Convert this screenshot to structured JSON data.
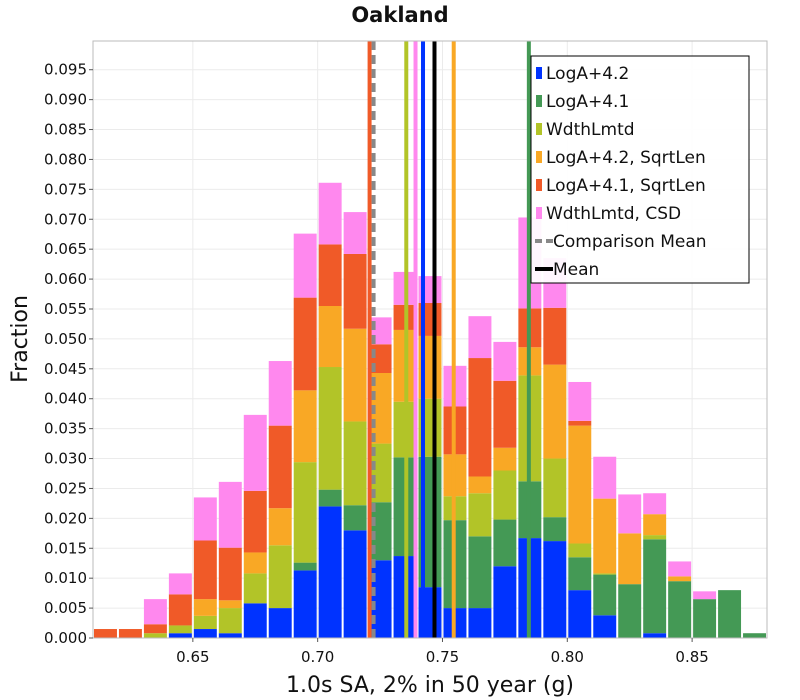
{
  "chart_data": {
    "type": "bar",
    "stacked": true,
    "title": "Oakland",
    "xlabel": "1.0s SA, 2% in 50 year (g)",
    "ylabel": "Fraction",
    "xlim": [
      0.61,
      0.88
    ],
    "ylim": [
      0.0,
      0.0998
    ],
    "bin_width": 0.01,
    "x_ticks": [
      0.65,
      0.7,
      0.75,
      0.8,
      0.85
    ],
    "x_tick_labels": [
      "0.65",
      "0.70",
      "0.75",
      "0.80",
      "0.85"
    ],
    "y_ticks": [
      0.0,
      0.005,
      0.01,
      0.015,
      0.02,
      0.025,
      0.03,
      0.035,
      0.04,
      0.045,
      0.05,
      0.055,
      0.06,
      0.065,
      0.07,
      0.075,
      0.08,
      0.085,
      0.09,
      0.095
    ],
    "y_tick_labels": [
      "0.000",
      "0.005",
      "0.010",
      "0.015",
      "0.020",
      "0.025",
      "0.030",
      "0.035",
      "0.040",
      "0.045",
      "0.050",
      "0.055",
      "0.060",
      "0.065",
      "0.070",
      "0.075",
      "0.080",
      "0.085",
      "0.090",
      "0.095"
    ],
    "grid": true,
    "bin_centers": [
      0.615,
      0.625,
      0.635,
      0.645,
      0.655,
      0.665,
      0.675,
      0.685,
      0.695,
      0.705,
      0.715,
      0.725,
      0.735,
      0.745,
      0.755,
      0.765,
      0.775,
      0.785,
      0.795,
      0.805,
      0.815,
      0.825,
      0.835,
      0.845,
      0.855,
      0.865,
      0.875
    ],
    "series": [
      {
        "name": "LogA+4.2",
        "color": "#0033ff",
        "values": [
          0,
          0,
          0,
          0.0008,
          0.0015,
          0.0008,
          0.0058,
          0.005,
          0.0113,
          0.022,
          0.018,
          0.013,
          0.0137,
          0.0085,
          0.005,
          0.005,
          0.012,
          0.0167,
          0.0162,
          0.008,
          0.0038,
          0,
          0.0008,
          0,
          0,
          0,
          0
        ]
      },
      {
        "name": "LogA+4.1",
        "color": "#449955",
        "values": [
          0,
          0,
          0,
          0,
          0,
          0,
          0,
          0,
          0.0013,
          0.0028,
          0.0042,
          0.0097,
          0.0165,
          0.0218,
          0.0147,
          0.012,
          0.0078,
          0.0095,
          0.004,
          0.0055,
          0.0068,
          0.009,
          0.0157,
          0.0095,
          0.0065,
          0.008,
          0.0008
        ]
      },
      {
        "name": "WdthLmtd",
        "color": "#b2c428",
        "values": [
          0,
          0,
          0.0008,
          0.0013,
          0.0022,
          0.0042,
          0.005,
          0.0105,
          0.0168,
          0.0205,
          0.014,
          0.0098,
          0.0093,
          0.0097,
          0.004,
          0.0072,
          0.0082,
          0.0177,
          0.0098,
          0.0023,
          0.0002,
          0,
          0.0007,
          0,
          0,
          0,
          0
        ]
      },
      {
        "name": "LogA+4.2, SqrtLen",
        "color": "#f9a825",
        "values": [
          0,
          0,
          0,
          0,
          0.0028,
          0.0013,
          0.0035,
          0.0062,
          0.012,
          0.0102,
          0.0155,
          0.0118,
          0.012,
          0.0105,
          0.007,
          0.0028,
          0.0038,
          0.0047,
          0.0157,
          0.0197,
          0.0125,
          0.0085,
          0.0035,
          0.0008,
          0,
          0,
          0
        ]
      },
      {
        "name": "LogA+4.1, SqrtLen",
        "color": "#f05a28",
        "values": [
          0.0015,
          0.0015,
          0.0015,
          0.0052,
          0.0098,
          0.0088,
          0.0103,
          0.0138,
          0.0155,
          0.0103,
          0.0125,
          0.0048,
          0.0042,
          0.0055,
          0.008,
          0.0198,
          0.0112,
          0.0065,
          0.0095,
          0.0008,
          0,
          0,
          0,
          0,
          0,
          0,
          0
        ]
      },
      {
        "name": "WdthLmtd, CSD",
        "color": "#ff88ee",
        "values": [
          0,
          0,
          0.0042,
          0.0035,
          0.0072,
          0.011,
          0.0127,
          0.0108,
          0.0107,
          0.0103,
          0.007,
          0.0045,
          0.0055,
          0.0045,
          0.0068,
          0.007,
          0.0065,
          0.0152,
          0.0083,
          0.0065,
          0.007,
          0.0065,
          0.0035,
          0.0025,
          0.0013,
          0,
          0
        ]
      }
    ],
    "vertical_lines": [
      {
        "series": "LogA+4.1, SqrtLen",
        "x": 0.7208,
        "color": "#f05a28",
        "style": "solid"
      },
      {
        "series": "Comparison Mean",
        "x": 0.7224,
        "color": "#888888",
        "style": "dashed"
      },
      {
        "series": "WdthLmtd",
        "x": 0.7355,
        "color": "#b2c428",
        "style": "solid"
      },
      {
        "series": "WdthLmtd, CSD",
        "x": 0.7392,
        "color": "#ff88ee",
        "style": "solid"
      },
      {
        "series": "LogA+4.2",
        "x": 0.7422,
        "color": "#0033ff",
        "style": "solid"
      },
      {
        "series": "Mean",
        "x": 0.7468,
        "color": "#000000",
        "style": "solid"
      },
      {
        "series": "LogA+4.2, SqrtLen",
        "x": 0.7545,
        "color": "#f9a825",
        "style": "solid"
      },
      {
        "series": "LogA+4.1",
        "x": 0.7846,
        "color": "#449955",
        "style": "solid"
      }
    ],
    "legend": {
      "position": "top-right",
      "entries": [
        {
          "label": "LogA+4.2",
          "color": "#0033ff",
          "kind": "box"
        },
        {
          "label": "LogA+4.1",
          "color": "#449955",
          "kind": "box"
        },
        {
          "label": "WdthLmtd",
          "color": "#b2c428",
          "kind": "box"
        },
        {
          "label": "LogA+4.2, SqrtLen",
          "color": "#f9a825",
          "kind": "box"
        },
        {
          "label": "LogA+4.1, SqrtLen",
          "color": "#f05a28",
          "kind": "box"
        },
        {
          "label": "WdthLmtd, CSD",
          "color": "#ff88ee",
          "kind": "box"
        },
        {
          "label": "Comparison Mean",
          "color": "#888888",
          "kind": "dashed"
        },
        {
          "label": "Mean",
          "color": "#000000",
          "kind": "solid"
        }
      ]
    }
  }
}
